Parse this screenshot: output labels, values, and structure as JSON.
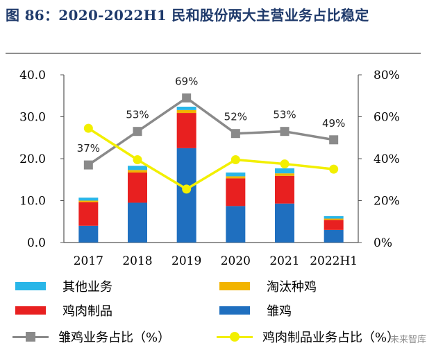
{
  "title": "图 86：2020-2022H1 民和股份两大主营业务占比稳定",
  "watermark": "未来智库",
  "chart_data": {
    "type": "bar",
    "categories": [
      "2017",
      "2018",
      "2019",
      "2020",
      "2021",
      "2022H1"
    ],
    "stacked_series": [
      {
        "name": "雏鸡",
        "color": "#1f6fbf",
        "values": [
          4.0,
          9.5,
          22.5,
          8.7,
          9.3,
          3.0
        ]
      },
      {
        "name": "鸡肉制品",
        "color": "#e82020",
        "values": [
          5.6,
          7.2,
          8.4,
          6.6,
          6.6,
          2.4
        ]
      },
      {
        "name": "淘汰种鸡",
        "color": "#f2b400",
        "values": [
          0.4,
          0.6,
          0.7,
          0.5,
          0.6,
          0.3
        ]
      },
      {
        "name": "其他业务",
        "color": "#29b6e8",
        "values": [
          0.7,
          1.0,
          0.8,
          0.9,
          1.2,
          0.6
        ]
      }
    ],
    "line_series": [
      {
        "name": "雏鸡业务占比（%）",
        "color": "#8a8a8a",
        "marker": "square",
        "values": [
          37,
          53,
          69,
          52,
          53,
          49
        ],
        "labels": [
          "37%",
          "53%",
          "69%",
          "52%",
          "53%",
          "49%"
        ]
      },
      {
        "name": "鸡肉制品业务占比（%）",
        "color": "#f2ef00",
        "marker": "circle",
        "values": [
          54.5,
          39.5,
          25.5,
          39.5,
          37.5,
          35.0
        ]
      }
    ],
    "y_left": {
      "min": 0,
      "max": 40,
      "ticks": [
        "0.0",
        "10.0",
        "20.0",
        "30.0",
        "40.0"
      ]
    },
    "y_right": {
      "min": 0,
      "max": 80,
      "ticks": [
        "0%",
        "20%",
        "40%",
        "60%",
        "80%"
      ]
    },
    "grid": false,
    "legend_position": "bottom"
  },
  "legend": [
    {
      "label": "其他业务",
      "kind": "bar",
      "color": "#29b6e8"
    },
    {
      "label": "淘汰种鸡",
      "kind": "bar",
      "color": "#f2b400"
    },
    {
      "label": "鸡肉制品",
      "kind": "bar",
      "color": "#e82020"
    },
    {
      "label": "雏鸡",
      "kind": "bar",
      "color": "#1f6fbf"
    },
    {
      "label": "雏鸡业务占比（%）",
      "kind": "line",
      "color": "#8a8a8a",
      "marker": "square"
    },
    {
      "label": "鸡肉制品业务占比（%）",
      "kind": "line",
      "color": "#f2ef00",
      "marker": "circle"
    }
  ]
}
